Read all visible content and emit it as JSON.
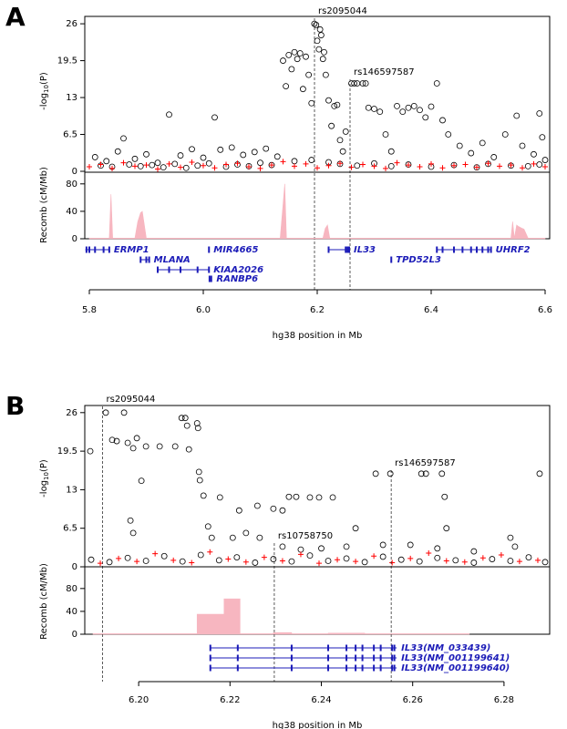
{
  "chart_data": [
    {
      "type": "scatter",
      "panel_label": "A",
      "ylabel": [
        "-log",
        "10",
        "(P)"
      ],
      "xlim": [
        5.792,
        6.608
      ],
      "ylim": [
        0,
        27.3
      ],
      "yticks": [
        0,
        6.5,
        13,
        19.5,
        26
      ],
      "series": [
        {
          "color": "#000000",
          "marker": "circle",
          "x": [
            5.81,
            5.83,
            5.85,
            5.86,
            5.88,
            5.9,
            5.92,
            5.94,
            5.96,
            5.98,
            6.0,
            6.02,
            6.03,
            6.05,
            6.07,
            6.09,
            6.11,
            6.13,
            6.14,
            6.145,
            6.15,
            6.155,
            6.16,
            6.165,
            6.17,
            6.175,
            6.18,
            6.185,
            6.19,
            6.195,
            6.198,
            6.2,
            6.203,
            6.205,
            6.207,
            6.21,
            6.212,
            6.215,
            6.22,
            6.225,
            6.23,
            6.235,
            6.24,
            6.245,
            6.25,
            6.26,
            6.265,
            6.27,
            6.28,
            6.285,
            6.29,
            6.3,
            6.31,
            6.32,
            6.33,
            6.34,
            6.35,
            6.36,
            6.37,
            6.38,
            6.39,
            6.4,
            6.41,
            6.42,
            6.43,
            6.45,
            6.47,
            6.49,
            6.51,
            6.53,
            6.55,
            6.56,
            6.58,
            6.59,
            6.595,
            6.6,
            5.82,
            5.84,
            5.87,
            5.89,
            5.91,
            5.93,
            5.95,
            5.97,
            5.99,
            6.01,
            6.04,
            6.06,
            6.08,
            6.1,
            6.12,
            6.16,
            6.19,
            6.22,
            6.24,
            6.27,
            6.3,
            6.33,
            6.36,
            6.4,
            6.44,
            6.48,
            6.5,
            6.54,
            6.57,
            6.59
          ],
          "values": [
            2.5,
            1.8,
            3.5,
            5.8,
            2.2,
            3.0,
            1.5,
            10.0,
            2.8,
            3.9,
            2.4,
            9.5,
            3.8,
            4.2,
            2.9,
            3.4,
            4.0,
            2.6,
            19.5,
            15.0,
            20.5,
            18.0,
            21.0,
            19.8,
            20.8,
            14.5,
            20.2,
            17.0,
            12.0,
            26.0,
            25.8,
            23.0,
            21.5,
            25.0,
            24.0,
            19.8,
            21.0,
            17.0,
            12.5,
            8.0,
            11.5,
            11.7,
            5.5,
            3.5,
            7.0,
            15.5,
            15.5,
            15.5,
            15.5,
            15.5,
            11.2,
            11.0,
            10.5,
            6.5,
            3.5,
            11.5,
            10.5,
            11.2,
            11.5,
            10.8,
            9.5,
            11.4,
            15.5,
            9.0,
            6.5,
            4.5,
            3.2,
            5.0,
            2.5,
            6.5,
            9.8,
            4.5,
            3.0,
            10.2,
            6.0,
            2.0,
            1.0,
            0.8,
            1.2,
            0.9,
            1.1,
            0.7,
            1.3,
            0.6,
            1.0,
            1.4,
            0.8,
            1.2,
            0.9,
            1.5,
            1.1,
            1.8,
            2.0,
            1.6,
            1.3,
            1.0,
            1.4,
            0.9,
            1.2,
            0.8,
            1.1,
            0.7,
            1.3,
            1.0,
            0.9,
            1.2
          ]
        },
        {
          "color": "#ff0000",
          "marker": "plus",
          "x": [
            5.8,
            5.82,
            5.84,
            5.86,
            5.88,
            5.9,
            5.92,
            5.94,
            5.96,
            5.98,
            6.0,
            6.02,
            6.04,
            6.06,
            6.08,
            6.1,
            6.12,
            6.14,
            6.16,
            6.18,
            6.2,
            6.22,
            6.24,
            6.26,
            6.28,
            6.3,
            6.32,
            6.34,
            6.36,
            6.38,
            6.4,
            6.42,
            6.44,
            6.46,
            6.48,
            6.5,
            6.52,
            6.54,
            6.56,
            6.58,
            6.6
          ],
          "values": [
            0.8,
            1.2,
            0.5,
            1.5,
            0.9,
            1.1,
            0.4,
            1.3,
            0.7,
            1.6,
            1.0,
            0.6,
            1.2,
            1.4,
            0.8,
            0.5,
            1.1,
            1.7,
            0.9,
            1.3,
            0.6,
            1.0,
            1.4,
            0.7,
            1.2,
            0.9,
            0.5,
            1.5,
            1.1,
            0.8,
            1.3,
            0.6,
            1.0,
            1.2,
            0.7,
            1.4,
            0.9,
            1.1,
            0.6,
            1.3,
            0.8
          ]
        }
      ],
      "snps": [
        {
          "label": "rs2095044",
          "x": 6.1952
        },
        {
          "label": "rs146597587",
          "x": 6.2576
        }
      ]
    },
    {
      "type": "area",
      "ylabel": "Recomb (cM/Mb)",
      "color": "#f7b6c0",
      "xlim": [
        5.792,
        6.608
      ],
      "ylim": [
        0,
        97
      ],
      "yticks": [
        0,
        40,
        80
      ],
      "x": [
        5.8,
        5.835,
        5.838,
        5.841,
        5.844,
        5.88,
        5.885,
        5.89,
        5.893,
        5.9,
        6.135,
        6.14,
        6.143,
        6.146,
        6.21,
        6.214,
        6.218,
        6.222,
        6.54,
        6.543,
        6.546,
        6.55,
        6.553,
        6.56,
        6.563,
        6.57,
        6.6
      ],
      "values": [
        1,
        1,
        65,
        1,
        1,
        1,
        25,
        38,
        40,
        1,
        1,
        50,
        80,
        1,
        1,
        15,
        20,
        1,
        1,
        25,
        1,
        20,
        18,
        15,
        14,
        1,
        1
      ]
    },
    {
      "type": "genes",
      "color": "#1c1cb8",
      "xlabel": "hg38 position in Mb",
      "xlim": [
        5.792,
        6.608
      ],
      "xticks": [
        5.8,
        {
          "value": 6.0,
          "label": "6.0"
        },
        6.2,
        6.4,
        6.6
      ],
      "genes": [
        {
          "name": "ERMP1",
          "row": 0,
          "start": 5.793,
          "end": 5.835,
          "exons": [
            5.795,
            5.8,
            5.81,
            5.825,
            5.835
          ]
        },
        {
          "name": "MLANA",
          "row": 1,
          "start": 5.89,
          "end": 5.905,
          "exons": [
            5.89,
            5.9,
            5.905
          ]
        },
        {
          "name": "MIR4665",
          "row": 0,
          "start": 6.01,
          "end": 6.01,
          "exons": [
            6.01
          ]
        },
        {
          "name": "KIAA2026",
          "row": 2,
          "start": 5.92,
          "end": 6.01,
          "exons": [
            5.92,
            5.94,
            5.96,
            5.99,
            6.01
          ]
        },
        {
          "name": "RANBP6",
          "row": 3,
          "start": 6.011,
          "end": 6.015,
          "exons": [
            6.011,
            6.014
          ]
        },
        {
          "name": "IL33",
          "row": 0,
          "start": 6.22,
          "end": 6.256,
          "exons": [
            6.22,
            6.25,
            6.253,
            6.256
          ]
        },
        {
          "name": "TPD52L3",
          "row": 1,
          "start": 6.33,
          "end": 6.33,
          "exons": [
            6.33
          ]
        },
        {
          "name": "UHRF2",
          "row": 0,
          "start": 6.41,
          "end": 6.505,
          "exons": [
            6.41,
            6.42,
            6.44,
            6.455,
            6.47,
            6.48,
            6.49,
            6.5,
            6.505
          ]
        }
      ]
    },
    {
      "type": "scatter",
      "panel_label": "B",
      "ylabel": [
        "-log",
        "10",
        "(P)"
      ],
      "xlim": [
        6.1882,
        6.29
      ],
      "ylim": [
        0,
        27.2
      ],
      "yticks": [
        0,
        6.5,
        13,
        19.5,
        26
      ],
      "series": [
        {
          "color": "#000000",
          "marker": "circle",
          "x": [
            6.1894,
            6.1928,
            6.1942,
            6.1952,
            6.1968,
            6.1976,
            6.1996,
            6.1988,
            6.2006,
            6.1982,
            6.1988,
            6.2016,
            6.2046,
            6.208,
            6.2094,
            6.2102,
            6.2106,
            6.211,
            6.2128,
            6.213,
            6.2132,
            6.2134,
            6.2142,
            6.2152,
            6.216,
            6.2178,
            6.222,
            6.226,
            6.2295,
            6.2315,
            6.2329,
            6.2345,
            6.2375,
            6.2395,
            6.2425,
            6.2475,
            6.2519,
            6.2551,
            6.2619,
            6.2629,
            6.2664,
            6.2674,
            6.267,
            6.2878,
            6.2235,
            6.2315,
            6.2355,
            6.24,
            6.2455,
            6.2535,
            6.2595,
            6.2654,
            6.2734,
            6.2814,
            6.2824,
            6.2206,
            6.2265,
            6.1896,
            6.1936,
            6.1976,
            6.2016,
            6.2056,
            6.2096,
            6.2136,
            6.2176,
            6.2215,
            6.2255,
            6.2295,
            6.2335,
            6.2375,
            6.2415,
            6.2455,
            6.2495,
            6.2535,
            6.2575,
            6.2615,
            6.2654,
            6.2694,
            6.2734,
            6.2774,
            6.2814,
            6.2854,
            6.289
          ],
          "values": [
            19.5,
            26,
            21.4,
            21.2,
            26,
            20.9,
            21.7,
            20,
            14.5,
            7.8,
            5.7,
            20.3,
            20.3,
            20.3,
            25.1,
            25.1,
            23.8,
            19.8,
            24.2,
            23.4,
            16,
            14.6,
            12,
            6.8,
            4.9,
            11.7,
            9.5,
            10.3,
            9.8,
            9.5,
            11.8,
            11.8,
            11.7,
            11.7,
            11.7,
            6.5,
            15.7,
            15.7,
            15.7,
            15.7,
            15.7,
            6.5,
            11.8,
            15.7,
            5.7,
            3.4,
            2.9,
            3.1,
            3.4,
            3.7,
            3.7,
            3.1,
            2.6,
            4.9,
            3.4,
            4.9,
            4.9,
            1.2,
            0.8,
            1.5,
            1.0,
            1.8,
            0.9,
            2.0,
            1.1,
            1.6,
            0.7,
            1.3,
            0.9,
            1.9,
            1.0,
            1.4,
            0.8,
            1.7,
            1.2,
            0.9,
            1.5,
            1.1,
            0.7,
            1.3,
            1.0,
            1.6,
            0.8
          ]
        },
        {
          "color": "#ff0000",
          "marker": "plus",
          "x": [
            6.1916,
            6.1956,
            6.1996,
            6.2036,
            6.2076,
            6.2116,
            6.2156,
            6.2196,
            6.2235,
            6.2275,
            6.2315,
            6.2355,
            6.2395,
            6.2435,
            6.2475,
            6.2515,
            6.2555,
            6.2595,
            6.2635,
            6.2674,
            6.2714,
            6.2754,
            6.2794,
            6.2834,
            6.2874
          ],
          "values": [
            0.6,
            1.4,
            0.9,
            2.2,
            1.1,
            0.7,
            2.5,
            1.3,
            0.8,
            1.6,
            1.0,
            2.1,
            0.6,
            1.2,
            0.9,
            1.8,
            0.7,
            1.4,
            2.3,
            1.0,
            0.8,
            1.5,
            2.0,
            0.9,
            1.1
          ]
        }
      ],
      "snps": [
        {
          "label": "rs2095044",
          "x": 6.1921
        },
        {
          "label": "rs10758750",
          "x": 6.2297
        },
        {
          "label": "rs146597587",
          "x": 6.2553
        }
      ]
    },
    {
      "type": "area",
      "ylabel": "Recomb (cM/Mb)",
      "color": "#f7b6c0",
      "xlim": [
        6.1882,
        6.29
      ],
      "ylim": [
        0,
        118
      ],
      "yticks": [
        0,
        40,
        80
      ],
      "x": [
        6.19,
        6.2128,
        6.2128,
        6.2187,
        6.2187,
        6.2222,
        6.2222,
        6.2295,
        6.2295,
        6.2335,
        6.2335,
        6.2415,
        6.2415,
        6.2495,
        6.2495,
        6.2724
      ],
      "values": [
        1,
        1,
        35,
        35,
        62,
        62,
        1,
        1,
        3,
        3,
        1,
        1,
        2,
        2,
        1,
        1
      ]
    },
    {
      "type": "genes",
      "color": "#1c1cb8",
      "xlabel": "hg38 position in Mb",
      "xlim": [
        6.1882,
        6.29
      ],
      "xticks": [
        {
          "value": 6.2,
          "label": "6.20"
        },
        6.22,
        6.24,
        6.26,
        6.28
      ],
      "genes": [
        {
          "name": "IL33(NM_033439)",
          "row": 0,
          "start": 6.2157,
          "end": 6.2565,
          "exons": [
            6.2157,
            6.2217,
            6.2335,
            6.2415,
            6.2455,
            6.2475,
            6.249,
            6.2515,
            6.253,
            6.2555,
            6.256
          ]
        },
        {
          "name": "IL33(NM_001199641)",
          "row": 1,
          "start": 6.2157,
          "end": 6.2565,
          "exons": [
            6.2157,
            6.2217,
            6.2335,
            6.2415,
            6.2455,
            6.2475,
            6.249,
            6.2515,
            6.253,
            6.2555,
            6.256
          ]
        },
        {
          "name": "IL33(NM_001199640)",
          "row": 2,
          "start": 6.2157,
          "end": 6.2565,
          "exons": [
            6.2157,
            6.2217,
            6.2335,
            6.2415,
            6.2455,
            6.2475,
            6.249,
            6.2515,
            6.253,
            6.2555,
            6.256
          ]
        }
      ]
    }
  ]
}
